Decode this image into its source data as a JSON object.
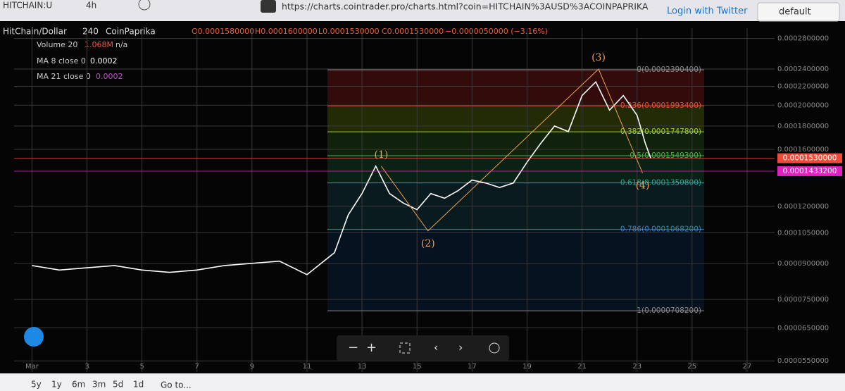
{
  "toolbar": {
    "symbol": "HITCHAIN:U",
    "interval": "4h",
    "url": "https://charts.cointrader.pro/charts.html?coin=HITCHAIN%3AUSD%3ACOINPAPRIKA",
    "login": "Login with Twitter",
    "theme": "default"
  },
  "legend": {
    "pair": "HitChain/Dollar",
    "period": "240",
    "source": "CoinPaprika",
    "open": "O0.0001580000",
    "high": "H0.0001600000",
    "low": "L0.0001530000",
    "close": "C0.0001530000",
    "change": "−0.0000050000 (−3.16%)",
    "volume": "Volume 20",
    "volume_value": "1.068M",
    "volume_na": "n/a",
    "ma8": "MA 8 close 0",
    "ma8_value": "0.0002",
    "ma21": "MA 21 close 0",
    "ma21_value": "0.0002"
  },
  "chart": {
    "type": "line",
    "color": "#ffffff",
    "x": [
      1,
      2,
      3,
      4,
      5,
      6,
      7,
      8,
      9,
      10,
      11,
      12,
      12.5,
      13,
      13.5,
      14,
      14.5,
      15,
      15.5,
      16,
      16.5,
      17,
      17.5,
      18,
      18.5,
      19,
      19.5,
      20,
      20.5,
      21,
      21.5,
      22,
      22.5,
      23,
      23.3,
      23.5
    ],
    "values": [
      8.9e-05,
      8.7e-05,
      8.8e-05,
      8.9e-05,
      8.7e-05,
      8.6e-05,
      8.7e-05,
      8.9e-05,
      9e-05,
      9.1e-05,
      8.5e-05,
      9.5e-05,
      0.000115,
      0.000128,
      0.000147,
      0.000128,
      0.000122,
      0.000118,
      0.000128,
      0.000125,
      0.00013,
      0.000137,
      0.000135,
      0.000132,
      0.000135,
      0.00015,
      0.000165,
      0.00018,
      0.000175,
      0.00021,
      0.000225,
      0.000195,
      0.00021,
      0.00019,
      0.000165,
      0.000153
    ],
    "log_y": true,
    "grid": true,
    "xlim": [
      0.35,
      28
    ],
    "xticks": [
      {
        "value": 1,
        "label": "Mar"
      },
      3,
      5,
      7,
      9,
      11,
      13,
      15,
      17,
      19,
      21,
      23,
      25,
      27
    ],
    "ylim": [
      5.2e-05,
      0.000295
    ],
    "yticks": [
      {
        "value": 0.00028,
        "label": "0.0002800000"
      },
      {
        "value": 0.00024,
        "label": "0.0002400000"
      },
      {
        "value": 0.00022,
        "label": "0.0002200000"
      },
      {
        "value": 0.0002,
        "label": "0.0002000000"
      },
      {
        "value": 0.00018,
        "label": "0.0001800000"
      },
      {
        "value": 0.00016,
        "label": "0.0001600000"
      },
      {
        "value": 0.00012,
        "label": "0.0001200000"
      },
      {
        "value": 0.000105,
        "label": "0.0001050000"
      },
      {
        "value": 9e-05,
        "label": "0.0000900000"
      },
      {
        "value": 7.5e-05,
        "label": "0.0000750000"
      },
      {
        "value": 6.5e-05,
        "label": "0.0000650000"
      },
      {
        "value": 5.5e-05,
        "label": "0.0000550000"
      }
    ],
    "fib_levels": [
      {
        "label": "0(0.0002390400)",
        "price": 0.00023904,
        "color": "#888888"
      },
      {
        "label": "0.236(0.0001993400)",
        "price": 0.00019934,
        "color": "#e0503a"
      },
      {
        "label": "0.382(0.0001747800)",
        "price": 0.00017478,
        "color": "#9acd32"
      },
      {
        "label": "0.5(0.0001549300)",
        "price": 0.00015493,
        "color": "#4caf50"
      },
      {
        "label": "0.618(0.0001350800)",
        "price": 0.00013508,
        "color": "#26a69a"
      },
      {
        "label": "0.786(0.0001068200)",
        "price": 0.00010682,
        "color": "#3f7fbf"
      },
      {
        "label": "1(0.0000708200)",
        "price": 7.082e-05,
        "color": "#888888"
      }
    ],
    "waves": [
      {
        "label": "(1)",
        "x": 13.7,
        "price": 0.000147
      },
      {
        "label": "(2)",
        "x": 15.4,
        "price": 0.000106
      },
      {
        "label": "(3)",
        "x": 21.6,
        "price": 0.00024
      },
      {
        "label": "(4)",
        "x": 23.2,
        "price": 0.000142
      }
    ],
    "price_tags": [
      {
        "label": "0.0001530000",
        "price": 0.000153,
        "color": "#f04a3a"
      },
      {
        "label": "0.0001433200",
        "price": 0.00014332,
        "color": "#e020c0"
      }
    ]
  },
  "bottom": {
    "ranges": [
      "5y",
      "1y",
      "6m",
      "3m",
      "5d",
      "1d"
    ],
    "goto": "Go to..."
  }
}
